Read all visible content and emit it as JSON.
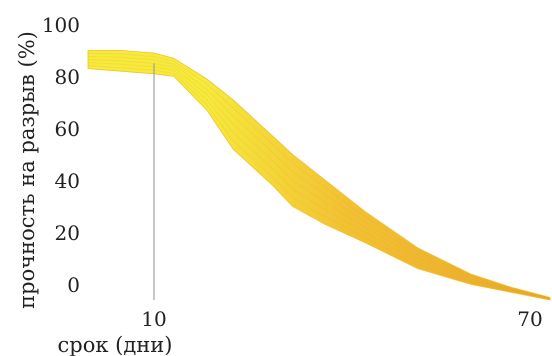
{
  "chart_data": {
    "type": "area",
    "title": "",
    "xlabel": "срок (дни)",
    "ylabel": "прочность на разрыв (%)",
    "xlim": [
      0,
      70
    ],
    "ylim": [
      0,
      100
    ],
    "x_ticks": [
      10,
      70
    ],
    "y_ticks": [
      0,
      20,
      40,
      60,
      80,
      100
    ],
    "grid": false,
    "reference_line": {
      "x": 10
    },
    "colors": {
      "band_light": "#f6ea3c",
      "band_mid": "#f2c233",
      "band_dark": "#e9a82a",
      "reference_line": "#a0a0a0",
      "text": "#222222"
    },
    "series": [
      {
        "upper": {
          "x": [
            0,
            5,
            10,
            13,
            18,
            22,
            28,
            31,
            36,
            42,
            50,
            58,
            64,
            70
          ],
          "y": [
            96,
            96,
            95,
            93,
            85,
            77,
            63,
            56,
            46,
            34,
            20,
            10,
            5,
            1
          ]
        },
        "lower": {
          "x": [
            0,
            5,
            10,
            13,
            18,
            22,
            28,
            31,
            36,
            42,
            50,
            58,
            64,
            70
          ],
          "y": [
            89,
            88,
            87,
            86,
            73,
            58,
            44,
            36,
            29,
            22,
            12,
            6,
            3,
            0
          ]
        }
      }
    ]
  }
}
